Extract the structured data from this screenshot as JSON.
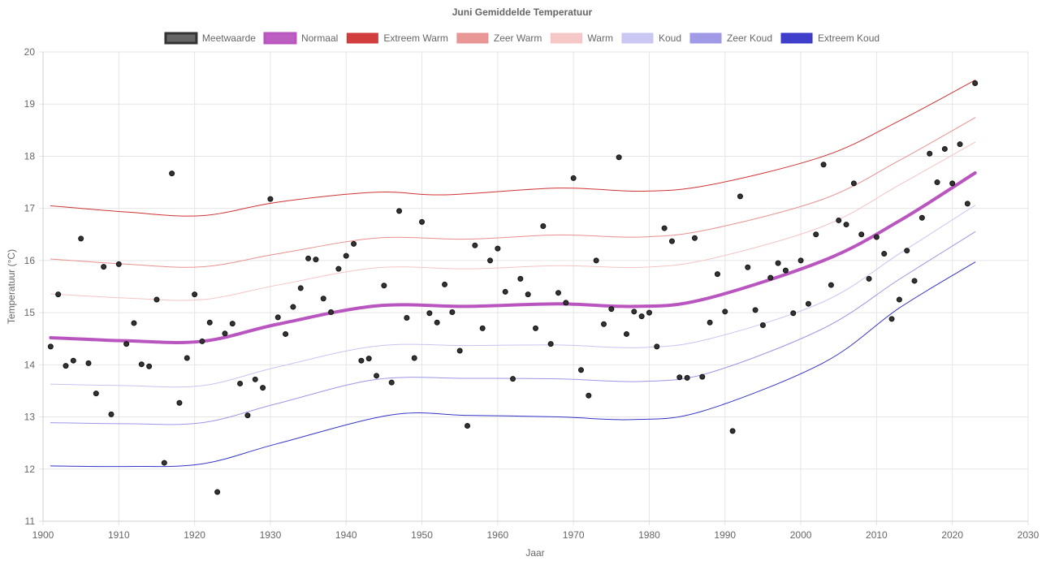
{
  "chart_data": {
    "type": "line",
    "title": "Juni Gemiddelde Temperatuur",
    "xlabel": "Jaar",
    "ylabel": "Temperatuur (°C)",
    "xlim": [
      1900,
      2030
    ],
    "ylim": [
      11,
      20
    ],
    "xticks": [
      "1900",
      "1910",
      "1920",
      "1930",
      "1940",
      "1950",
      "1960",
      "1970",
      "1980",
      "1990",
      "2000",
      "2010",
      "2020",
      "2030"
    ],
    "yticks": [
      "11",
      "12",
      "13",
      "14",
      "15",
      "16",
      "17",
      "18",
      "19",
      "20"
    ],
    "grid": true,
    "legend_position": "top",
    "series": [
      {
        "name": "Meetwaarde",
        "kind": "scatter",
        "color": "#333333",
        "points": [
          [
            1901,
            14.35
          ],
          [
            1902,
            15.35
          ],
          [
            1903,
            13.98
          ],
          [
            1904,
            14.08
          ],
          [
            1905,
            16.42
          ],
          [
            1906,
            14.03
          ],
          [
            1907,
            13.45
          ],
          [
            1908,
            15.88
          ],
          [
            1909,
            13.05
          ],
          [
            1910,
            15.93
          ],
          [
            1911,
            14.4
          ],
          [
            1912,
            14.8
          ],
          [
            1913,
            14.01
          ],
          [
            1914,
            13.97
          ],
          [
            1915,
            15.25
          ],
          [
            1916,
            12.12
          ],
          [
            1917,
            17.67
          ],
          [
            1918,
            13.27
          ],
          [
            1919,
            14.13
          ],
          [
            1920,
            15.35
          ],
          [
            1921,
            14.45
          ],
          [
            1922,
            14.81
          ],
          [
            1923,
            11.56
          ],
          [
            1924,
            14.6
          ],
          [
            1925,
            14.79
          ],
          [
            1926,
            13.64
          ],
          [
            1927,
            13.03
          ],
          [
            1928,
            13.72
          ],
          [
            1929,
            13.56
          ],
          [
            1930,
            17.18
          ],
          [
            1931,
            14.91
          ],
          [
            1932,
            14.59
          ],
          [
            1933,
            15.11
          ],
          [
            1934,
            15.47
          ],
          [
            1935,
            16.04
          ],
          [
            1936,
            16.02
          ],
          [
            1937,
            15.27
          ],
          [
            1938,
            15.01
          ],
          [
            1939,
            15.84
          ],
          [
            1940,
            16.09
          ],
          [
            1941,
            16.32
          ],
          [
            1942,
            14.08
          ],
          [
            1943,
            14.12
          ],
          [
            1944,
            13.79
          ],
          [
            1945,
            15.52
          ],
          [
            1946,
            13.66
          ],
          [
            1947,
            16.95
          ],
          [
            1948,
            14.9
          ],
          [
            1949,
            14.13
          ],
          [
            1950,
            16.74
          ],
          [
            1951,
            14.99
          ],
          [
            1952,
            14.81
          ],
          [
            1953,
            15.54
          ],
          [
            1954,
            15.01
          ],
          [
            1955,
            14.27
          ],
          [
            1956,
            12.83
          ],
          [
            1957,
            16.29
          ],
          [
            1958,
            14.7
          ],
          [
            1959,
            16.0
          ],
          [
            1960,
            16.23
          ],
          [
            1961,
            15.4
          ],
          [
            1962,
            13.73
          ],
          [
            1963,
            15.65
          ],
          [
            1964,
            15.35
          ],
          [
            1965,
            14.7
          ],
          [
            1966,
            16.66
          ],
          [
            1967,
            14.4
          ],
          [
            1968,
            15.38
          ],
          [
            1969,
            15.19
          ],
          [
            1970,
            17.58
          ],
          [
            1971,
            13.9
          ],
          [
            1972,
            13.41
          ],
          [
            1973,
            16.0
          ],
          [
            1974,
            14.78
          ],
          [
            1975,
            15.07
          ],
          [
            1976,
            17.98
          ],
          [
            1977,
            14.59
          ],
          [
            1978,
            15.02
          ],
          [
            1979,
            14.93
          ],
          [
            1980,
            15.0
          ],
          [
            1981,
            14.35
          ],
          [
            1982,
            16.62
          ],
          [
            1983,
            16.37
          ],
          [
            1984,
            13.76
          ],
          [
            1985,
            13.75
          ],
          [
            1986,
            16.43
          ],
          [
            1987,
            13.77
          ],
          [
            1988,
            14.81
          ],
          [
            1989,
            15.74
          ],
          [
            1990,
            15.02
          ],
          [
            1991,
            12.73
          ],
          [
            1992,
            17.23
          ],
          [
            1993,
            15.87
          ],
          [
            1994,
            15.05
          ],
          [
            1995,
            14.76
          ],
          [
            1996,
            15.67
          ],
          [
            1997,
            15.95
          ],
          [
            1998,
            15.81
          ],
          [
            1999,
            14.99
          ],
          [
            2000,
            16.0
          ],
          [
            2001,
            15.17
          ],
          [
            2002,
            16.5
          ],
          [
            2003,
            17.84
          ],
          [
            2004,
            15.53
          ],
          [
            2005,
            16.77
          ],
          [
            2006,
            16.69
          ],
          [
            2007,
            17.48
          ],
          [
            2008,
            16.5
          ],
          [
            2009,
            15.65
          ],
          [
            2010,
            16.45
          ],
          [
            2011,
            16.13
          ],
          [
            2012,
            14.88
          ],
          [
            2013,
            15.25
          ],
          [
            2014,
            16.19
          ],
          [
            2015,
            15.61
          ],
          [
            2016,
            16.82
          ],
          [
            2017,
            18.05
          ],
          [
            2018,
            17.5
          ],
          [
            2019,
            18.14
          ],
          [
            2020,
            17.48
          ],
          [
            2021,
            18.23
          ],
          [
            2022,
            17.09
          ],
          [
            2023,
            19.4
          ]
        ]
      },
      {
        "name": "Normaal",
        "kind": "line",
        "color": "#b955bf",
        "width": 4,
        "points": [
          [
            1901,
            14.52
          ],
          [
            1911,
            14.46
          ],
          [
            1921,
            14.45
          ],
          [
            1931,
            14.78
          ],
          [
            1944,
            15.13
          ],
          [
            1956,
            15.12
          ],
          [
            1968,
            15.17
          ],
          [
            1978,
            15.12
          ],
          [
            1987,
            15.25
          ],
          [
            2003,
            16.0
          ],
          [
            2013,
            16.76
          ],
          [
            2023,
            17.68
          ]
        ]
      },
      {
        "name": "Extreem Warm",
        "kind": "line",
        "color": "#d03333",
        "width": 1,
        "points": [
          [
            1901,
            17.05
          ],
          [
            1911,
            16.93
          ],
          [
            1921,
            16.86
          ],
          [
            1931,
            17.12
          ],
          [
            1944,
            17.31
          ],
          [
            1953,
            17.26
          ],
          [
            1968,
            17.39
          ],
          [
            1979,
            17.33
          ],
          [
            1988,
            17.45
          ],
          [
            2003,
            18.0
          ],
          [
            2013,
            18.68
          ],
          [
            2023,
            19.46
          ]
        ]
      },
      {
        "name": "Zeer Warm",
        "kind": "line",
        "color": "#e89090",
        "width": 1,
        "points": [
          [
            1901,
            16.03
          ],
          [
            1911,
            15.93
          ],
          [
            1921,
            15.88
          ],
          [
            1931,
            16.13
          ],
          [
            1944,
            16.43
          ],
          [
            1956,
            16.41
          ],
          [
            1968,
            16.49
          ],
          [
            1979,
            16.45
          ],
          [
            1988,
            16.6
          ],
          [
            2003,
            17.18
          ],
          [
            2013,
            17.92
          ],
          [
            2023,
            18.74
          ]
        ]
      },
      {
        "name": "Warm",
        "kind": "line",
        "color": "#f4c4c4",
        "width": 1,
        "points": [
          [
            1901,
            15.36
          ],
          [
            1911,
            15.28
          ],
          [
            1921,
            15.25
          ],
          [
            1931,
            15.53
          ],
          [
            1944,
            15.86
          ],
          [
            1956,
            15.84
          ],
          [
            1968,
            15.9
          ],
          [
            1979,
            15.87
          ],
          [
            1988,
            16.03
          ],
          [
            2003,
            16.66
          ],
          [
            2013,
            17.45
          ],
          [
            2023,
            18.27
          ]
        ]
      },
      {
        "name": "Koud",
        "kind": "line",
        "color": "#c8c4f2",
        "width": 1,
        "points": [
          [
            1901,
            13.63
          ],
          [
            1911,
            13.6
          ],
          [
            1921,
            13.6
          ],
          [
            1931,
            13.96
          ],
          [
            1944,
            14.36
          ],
          [
            1956,
            14.37
          ],
          [
            1968,
            14.38
          ],
          [
            1979,
            14.33
          ],
          [
            1988,
            14.5
          ],
          [
            2003,
            15.21
          ],
          [
            2013,
            16.13
          ],
          [
            2023,
            17.06
          ]
        ]
      },
      {
        "name": "Zeer Koud",
        "kind": "line",
        "color": "#9c96e6",
        "width": 1,
        "points": [
          [
            1901,
            12.89
          ],
          [
            1911,
            12.87
          ],
          [
            1921,
            12.89
          ],
          [
            1931,
            13.26
          ],
          [
            1944,
            13.72
          ],
          [
            1956,
            13.74
          ],
          [
            1968,
            13.73
          ],
          [
            1979,
            13.68
          ],
          [
            1988,
            13.85
          ],
          [
            2003,
            14.7
          ],
          [
            2013,
            15.64
          ],
          [
            2023,
            16.55
          ]
        ]
      },
      {
        "name": "Extreem Koud",
        "kind": "line",
        "color": "#3535c8",
        "width": 1,
        "points": [
          [
            1901,
            12.06
          ],
          [
            1911,
            12.05
          ],
          [
            1921,
            12.1
          ],
          [
            1931,
            12.49
          ],
          [
            1946,
            13.04
          ],
          [
            1956,
            13.03
          ],
          [
            1968,
            13.0
          ],
          [
            1978,
            12.95
          ],
          [
            1987,
            13.11
          ],
          [
            2003,
            14.04
          ],
          [
            2013,
            15.09
          ],
          [
            2023,
            15.97
          ]
        ]
      }
    ]
  }
}
